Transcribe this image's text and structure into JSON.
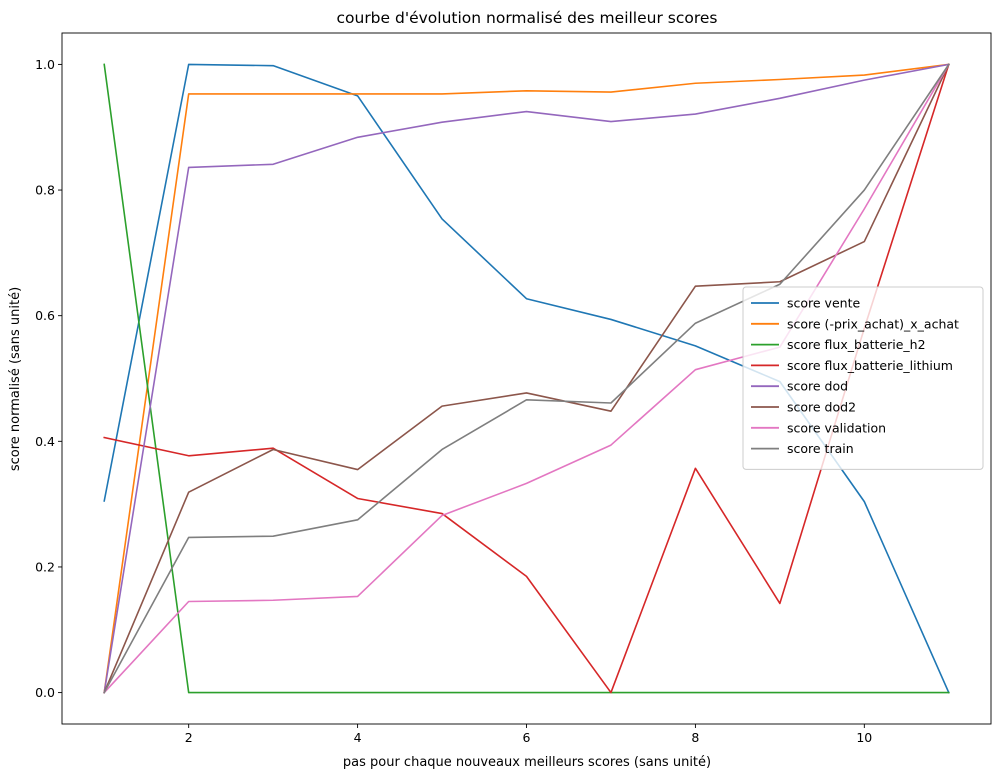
{
  "chart_data": {
    "type": "line",
    "title": "courbe d'évolution normalisé des meilleur scores",
    "xlabel": "pas pour chaque nouveaux meilleurs scores (sans unité)",
    "ylabel": "score normalisé (sans unité)",
    "xlim": [
      0.5,
      11.5
    ],
    "ylim": [
      -0.05,
      1.05
    ],
    "xticks": [
      2,
      4,
      6,
      8,
      10
    ],
    "xtick_labels": [
      "2",
      "4",
      "6",
      "8",
      "10"
    ],
    "yticks": [
      0.0,
      0.2,
      0.4,
      0.6,
      0.8,
      1.0
    ],
    "ytick_labels": [
      "0.0",
      "0.2",
      "0.4",
      "0.6",
      "0.8",
      "1.0"
    ],
    "grid": false,
    "legend_position": "center-right",
    "x": [
      1,
      2,
      3,
      4,
      5,
      6,
      7,
      8,
      9,
      10,
      11
    ],
    "series": [
      {
        "name": "score vente",
        "color": "#1f77b4",
        "values": [
          0.305,
          1.0,
          0.998,
          0.95,
          0.754,
          0.627,
          0.594,
          0.552,
          0.495,
          0.304,
          0.0
        ]
      },
      {
        "name": "score (-prix_achat)_x_achat",
        "color": "#ff7f0e",
        "values": [
          0.0,
          0.953,
          0.953,
          0.953,
          0.953,
          0.958,
          0.956,
          0.97,
          0.976,
          0.983,
          1.0
        ]
      },
      {
        "name": "score flux_batterie_h2",
        "color": "#2ca02c",
        "values": [
          1.0,
          0.0,
          0.0,
          0.0,
          0.0,
          0.0,
          0.0,
          0.0,
          0.0,
          0.0,
          0.0
        ]
      },
      {
        "name": "score flux_batterie_lithium",
        "color": "#d62728",
        "values": [
          0.406,
          0.377,
          0.389,
          0.309,
          0.285,
          0.185,
          0.0,
          0.357,
          0.142,
          0.58,
          1.0
        ]
      },
      {
        "name": "score dod",
        "color": "#9467bd",
        "values": [
          0.0,
          0.836,
          0.841,
          0.884,
          0.908,
          0.925,
          0.909,
          0.921,
          0.946,
          0.975,
          1.0
        ]
      },
      {
        "name": "score dod2",
        "color": "#8c564b",
        "values": [
          0.0,
          0.319,
          0.387,
          0.355,
          0.456,
          0.477,
          0.448,
          0.647,
          0.654,
          0.718,
          1.0
        ]
      },
      {
        "name": "score validation",
        "color": "#e377c2",
        "values": [
          0.0,
          0.145,
          0.147,
          0.153,
          0.282,
          0.333,
          0.394,
          0.514,
          0.55,
          0.77,
          1.0
        ]
      },
      {
        "name": "score train",
        "color": "#7f7f7f",
        "values": [
          0.0,
          0.247,
          0.249,
          0.275,
          0.387,
          0.466,
          0.461,
          0.588,
          0.65,
          0.8,
          1.0
        ]
      }
    ]
  }
}
